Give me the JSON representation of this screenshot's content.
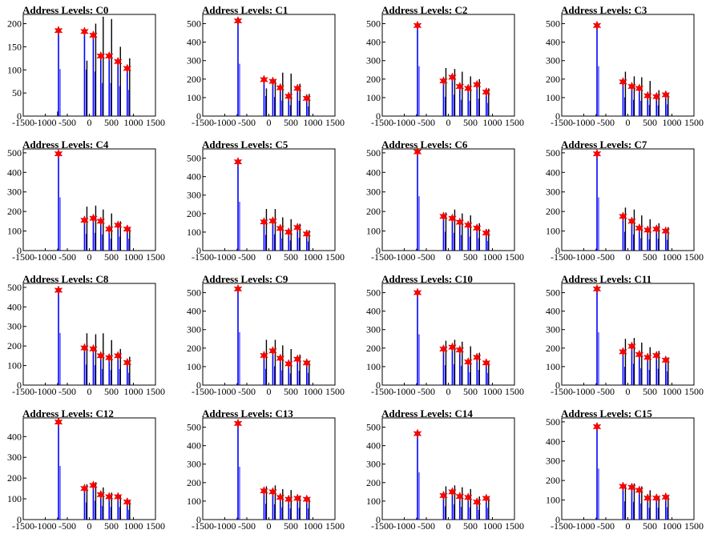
{
  "figure": {
    "colors": {
      "frame": "#000000",
      "histogram_primary": "#0000ff",
      "histogram_secondary": "#000000",
      "marker": "#ff0000"
    }
  },
  "chart_data": [
    {
      "type": "bar",
      "title": "Address Levels: C0",
      "xlim": [
        -1500,
        1500
      ],
      "ylim": [
        0,
        220
      ],
      "x_ticks": [
        -1500,
        -1000,
        -500,
        0,
        500,
        1000,
        1500
      ],
      "y_ticks": [
        0,
        50,
        100,
        150,
        200
      ],
      "peaks_x": [
        -700,
        -110,
        90,
        260,
        450,
        650,
        860
      ],
      "peaks_y": [
        185,
        183,
        175,
        130,
        130,
        118,
        103
      ],
      "black_y": [
        10,
        120,
        200,
        215,
        210,
        150,
        125
      ]
    },
    {
      "type": "bar",
      "title": "Address Levels: C1",
      "xlim": [
        -1500,
        1500
      ],
      "ylim": [
        0,
        550
      ],
      "x_ticks": [
        -1500,
        -1000,
        -500,
        0,
        500,
        1000,
        1500
      ],
      "y_ticks": [
        0,
        100,
        200,
        300,
        400,
        500
      ],
      "peaks_x": [
        -700,
        -110,
        90,
        260,
        450,
        650,
        860
      ],
      "peaks_y": [
        515,
        197,
        188,
        153,
        107,
        150,
        96
      ],
      "black_y": [
        10,
        150,
        200,
        235,
        230,
        175,
        120
      ]
    },
    {
      "type": "bar",
      "title": "Address Levels: C2",
      "xlim": [
        -1500,
        1500
      ],
      "ylim": [
        0,
        550
      ],
      "x_ticks": [
        -1500,
        -1000,
        -500,
        0,
        500,
        1000,
        1500
      ],
      "y_ticks": [
        0,
        100,
        200,
        300,
        400,
        500
      ],
      "peaks_x": [
        -700,
        -110,
        90,
        260,
        450,
        650,
        860
      ],
      "peaks_y": [
        490,
        190,
        210,
        160,
        150,
        170,
        130
      ],
      "black_y": [
        10,
        260,
        255,
        240,
        215,
        200,
        150
      ]
    },
    {
      "type": "bar",
      "title": "Address Levels: C3",
      "xlim": [
        -1500,
        1500
      ],
      "ylim": [
        0,
        550
      ],
      "x_ticks": [
        -1500,
        -1000,
        -500,
        0,
        500,
        1000,
        1500
      ],
      "y_ticks": [
        0,
        100,
        200,
        300,
        400,
        500
      ],
      "peaks_x": [
        -700,
        -110,
        90,
        260,
        450,
        650,
        860
      ],
      "peaks_y": [
        490,
        185,
        160,
        150,
        110,
        105,
        115
      ],
      "black_y": [
        10,
        240,
        215,
        210,
        190,
        140,
        120
      ]
    },
    {
      "type": "bar",
      "title": "Address Levels: C4",
      "xlim": [
        -1500,
        1500
      ],
      "ylim": [
        0,
        520
      ],
      "x_ticks": [
        -1500,
        -1000,
        -500,
        0,
        500,
        1000,
        1500
      ],
      "y_ticks": [
        0,
        100,
        200,
        300,
        400,
        500
      ],
      "peaks_x": [
        -700,
        -110,
        90,
        260,
        450,
        650,
        860
      ],
      "peaks_y": [
        495,
        155,
        165,
        150,
        110,
        130,
        110
      ],
      "black_y": [
        10,
        225,
        230,
        210,
        190,
        150,
        120
      ]
    },
    {
      "type": "bar",
      "title": "Address Levels: C5",
      "xlim": [
        -1500,
        1500
      ],
      "ylim": [
        0,
        550
      ],
      "x_ticks": [
        -1500,
        -1000,
        -500,
        0,
        500,
        1000,
        1500
      ],
      "y_ticks": [
        0,
        100,
        200,
        300,
        400,
        500
      ],
      "peaks_x": [
        -700,
        -110,
        90,
        260,
        450,
        650,
        860
      ],
      "peaks_y": [
        480,
        155,
        160,
        120,
        100,
        125,
        90
      ],
      "black_y": [
        10,
        225,
        225,
        180,
        170,
        145,
        110
      ]
    },
    {
      "type": "bar",
      "title": "Address Levels: C6",
      "xlim": [
        -1500,
        1500
      ],
      "ylim": [
        0,
        520
      ],
      "x_ticks": [
        -1500,
        -1000,
        -500,
        0,
        500,
        1000,
        1500
      ],
      "y_ticks": [
        0,
        100,
        200,
        300,
        400,
        500
      ],
      "peaks_x": [
        -700,
        -110,
        90,
        260,
        450,
        650,
        860
      ],
      "peaks_y": [
        505,
        175,
        165,
        145,
        130,
        115,
        90
      ],
      "black_y": [
        10,
        195,
        210,
        190,
        180,
        140,
        110
      ]
    },
    {
      "type": "bar",
      "title": "Address Levels: C7",
      "xlim": [
        -1500,
        1500
      ],
      "ylim": [
        0,
        520
      ],
      "x_ticks": [
        -1500,
        -1000,
        -500,
        0,
        500,
        1000,
        1500
      ],
      "y_ticks": [
        0,
        100,
        200,
        300,
        400,
        500
      ],
      "peaks_x": [
        -700,
        -110,
        90,
        260,
        450,
        650,
        860
      ],
      "peaks_y": [
        495,
        175,
        150,
        115,
        105,
        110,
        100
      ],
      "black_y": [
        10,
        220,
        210,
        180,
        160,
        140,
        120
      ]
    },
    {
      "type": "bar",
      "title": "Address Levels: C8",
      "xlim": [
        -1500,
        1500
      ],
      "ylim": [
        0,
        520
      ],
      "x_ticks": [
        -1500,
        -1000,
        -500,
        0,
        500,
        1000,
        1500
      ],
      "y_ticks": [
        0,
        100,
        200,
        300,
        400,
        500
      ],
      "peaks_x": [
        -700,
        -110,
        90,
        260,
        450,
        650,
        860
      ],
      "peaks_y": [
        485,
        190,
        185,
        150,
        140,
        150,
        115
      ],
      "black_y": [
        10,
        265,
        260,
        265,
        230,
        185,
        145
      ]
    },
    {
      "type": "bar",
      "title": "Address Levels: C9",
      "xlim": [
        -1500,
        1500
      ],
      "ylim": [
        0,
        550
      ],
      "x_ticks": [
        -1500,
        -1000,
        -500,
        0,
        500,
        1000,
        1500
      ],
      "y_ticks": [
        0,
        100,
        200,
        300,
        400,
        500
      ],
      "peaks_x": [
        -700,
        -110,
        90,
        260,
        450,
        650,
        860
      ],
      "peaks_y": [
        520,
        160,
        185,
        145,
        115,
        140,
        120
      ],
      "black_y": [
        10,
        245,
        245,
        215,
        195,
        165,
        130
      ]
    },
    {
      "type": "bar",
      "title": "Address Levels: C10",
      "xlim": [
        -1500,
        1500
      ],
      "ylim": [
        0,
        550
      ],
      "x_ticks": [
        -1500,
        -1000,
        -500,
        0,
        500,
        1000,
        1500
      ],
      "y_ticks": [
        0,
        100,
        200,
        300,
        400,
        500
      ],
      "peaks_x": [
        -700,
        -110,
        90,
        260,
        450,
        650,
        860
      ],
      "peaks_y": [
        500,
        195,
        205,
        190,
        125,
        150,
        120
      ],
      "black_y": [
        10,
        240,
        245,
        235,
        210,
        175,
        130
      ]
    },
    {
      "type": "bar",
      "title": "Address Levels: C11",
      "xlim": [
        -1500,
        1500
      ],
      "ylim": [
        0,
        550
      ],
      "x_ticks": [
        -1500,
        -1000,
        -500,
        0,
        500,
        1000,
        1500
      ],
      "y_ticks": [
        0,
        100,
        200,
        300,
        400,
        500
      ],
      "peaks_x": [
        -700,
        -110,
        90,
        260,
        450,
        650,
        860
      ],
      "peaks_y": [
        520,
        180,
        210,
        165,
        150,
        160,
        135
      ],
      "black_y": [
        10,
        250,
        255,
        230,
        205,
        185,
        150
      ]
    },
    {
      "type": "bar",
      "title": "Address Levels: C12",
      "xlim": [
        -1500,
        1500
      ],
      "ylim": [
        0,
        490
      ],
      "x_ticks": [
        -1500,
        -1000,
        -500,
        0,
        500,
        1000,
        1500
      ],
      "y_ticks": [
        0,
        100,
        200,
        300,
        400
      ],
      "peaks_x": [
        -700,
        -110,
        90,
        260,
        450,
        650,
        860
      ],
      "peaks_y": [
        470,
        150,
        165,
        120,
        110,
        110,
        85
      ],
      "black_y": [
        10,
        170,
        180,
        155,
        130,
        120,
        90
      ]
    },
    {
      "type": "bar",
      "title": "Address Levels: C13",
      "xlim": [
        -1500,
        1500
      ],
      "ylim": [
        0,
        550
      ],
      "x_ticks": [
        -1500,
        -1000,
        -500,
        0,
        500,
        1000,
        1500
      ],
      "y_ticks": [
        0,
        100,
        200,
        300,
        400,
        500
      ],
      "peaks_x": [
        -700,
        -110,
        90,
        260,
        450,
        650,
        860
      ],
      "peaks_y": [
        520,
        155,
        150,
        120,
        110,
        115,
        110
      ],
      "black_y": [
        10,
        180,
        185,
        165,
        160,
        130,
        120
      ]
    },
    {
      "type": "bar",
      "title": "Address Levels: C14",
      "xlim": [
        -1500,
        1500
      ],
      "ylim": [
        0,
        550
      ],
      "x_ticks": [
        -1500,
        -1000,
        -500,
        0,
        500,
        1000,
        1500
      ],
      "y_ticks": [
        0,
        100,
        200,
        300,
        400,
        500
      ],
      "peaks_x": [
        -700,
        -110,
        90,
        260,
        450,
        650,
        860
      ],
      "peaks_y": [
        465,
        130,
        150,
        125,
        120,
        95,
        115
      ],
      "black_y": [
        10,
        180,
        185,
        175,
        165,
        125,
        120
      ]
    },
    {
      "type": "bar",
      "title": "Address Levels: C15",
      "xlim": [
        -1500,
        1500
      ],
      "ylim": [
        0,
        520
      ],
      "x_ticks": [
        -1500,
        -1000,
        -500,
        0,
        500,
        1000,
        1500
      ],
      "y_ticks": [
        0,
        100,
        200,
        300,
        400,
        500
      ],
      "peaks_x": [
        -700,
        -110,
        90,
        260,
        450,
        650,
        860
      ],
      "peaks_y": [
        475,
        170,
        165,
        150,
        110,
        110,
        115
      ],
      "black_y": [
        10,
        180,
        185,
        170,
        150,
        120,
        120
      ]
    }
  ]
}
